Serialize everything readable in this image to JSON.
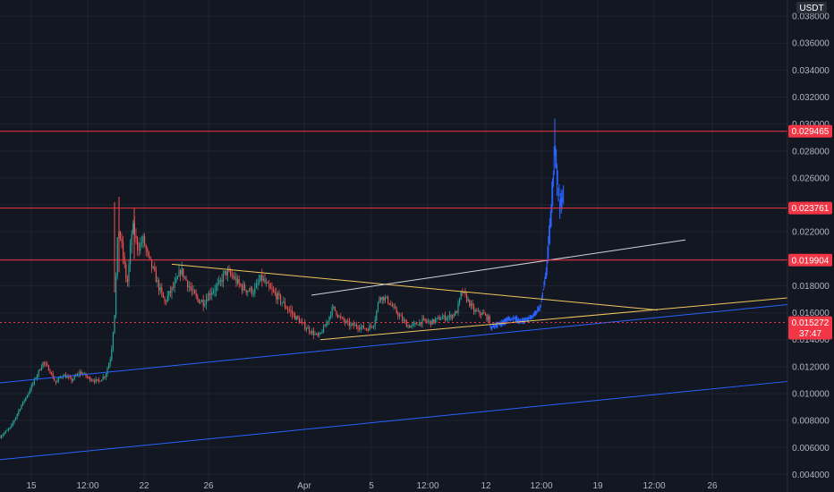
{
  "chart_data": {
    "type": "candlestick",
    "currency": "USDT",
    "y_ticks": [
      "0.038000",
      "0.036000",
      "0.034000",
      "0.032000",
      "0.030000",
      "0.028000",
      "0.026000",
      "0.024000",
      "0.022000",
      "0.020000",
      "0.018000",
      "0.016000",
      "0.014000",
      "0.012000",
      "0.010000",
      "0.008000",
      "0.006000",
      "0.004000"
    ],
    "ylim": [
      0.0027,
      0.0392
    ],
    "x_ticks": [
      "15",
      "12:00",
      "22",
      "26",
      "Apr",
      "5",
      "12:00",
      "12",
      "12:00",
      "19",
      "12:00",
      "26"
    ],
    "horizontal_levels": [
      {
        "value": 0.029465,
        "label": "0.029465",
        "color": "#f23645"
      },
      {
        "value": 0.023761,
        "label": "0.023761",
        "color": "#f23645"
      },
      {
        "value": 0.019904,
        "label": "0.019904",
        "color": "#f23645"
      }
    ],
    "current_price": {
      "value": 0.015272,
      "label": "0.015272",
      "countdown": "37:47",
      "color": "#f23645"
    },
    "series": [
      {
        "name": "price",
        "kind": "candles",
        "up_color": "#26a69a",
        "down_color": "#ef5350"
      },
      {
        "name": "recent",
        "kind": "candles",
        "color": "#2962ff"
      }
    ],
    "grid": true
  }
}
